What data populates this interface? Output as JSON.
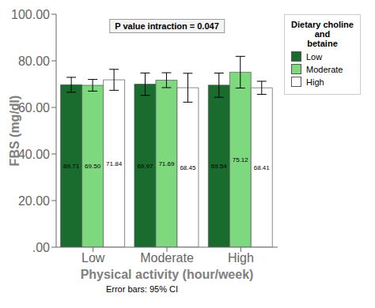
{
  "chart_data": {
    "type": "bar",
    "categories": [
      "Low",
      "Moderate",
      "High"
    ],
    "series": [
      {
        "name": "Low",
        "color": "#1a6b2e",
        "values": [
          69.71,
          69.97,
          69.54
        ],
        "value_labels": [
          "69.71",
          "69.97",
          "69.54"
        ],
        "errors": [
          3.2,
          4.8,
          5.2
        ]
      },
      {
        "name": "Moderate",
        "color": "#7ed87e",
        "values": [
          69.5,
          71.69,
          75.12
        ],
        "value_labels": [
          "69.50",
          "71.69",
          "75.12"
        ],
        "errors": [
          2.5,
          3.2,
          6.8
        ]
      },
      {
        "name": "High",
        "color": "#ffffff",
        "values": [
          71.84,
          68.45,
          68.41
        ],
        "value_labels": [
          "71.84",
          "68.45",
          "68.41"
        ],
        "errors": [
          4.5,
          6.2,
          2.8
        ]
      }
    ],
    "ylim": [
      0,
      100
    ],
    "yticks": [
      {
        "value": 0,
        "label": ".00"
      },
      {
        "value": 20,
        "label": "20.00"
      },
      {
        "value": 40,
        "label": "40.00"
      },
      {
        "value": 60,
        "label": "60.00"
      },
      {
        "value": 80,
        "label": "80.00"
      },
      {
        "value": 100,
        "label": "100.00"
      }
    ],
    "xlabel": "Physical activity (hour/week)",
    "ylabel": "FBS (mg/dl)",
    "legend_title": "Dietary choline and\nbetaine",
    "legend": "right",
    "annotations": [
      "P value intraction = 0.047",
      "Error bars: 95% CI"
    ],
    "grid": false,
    "data_labels": true
  }
}
